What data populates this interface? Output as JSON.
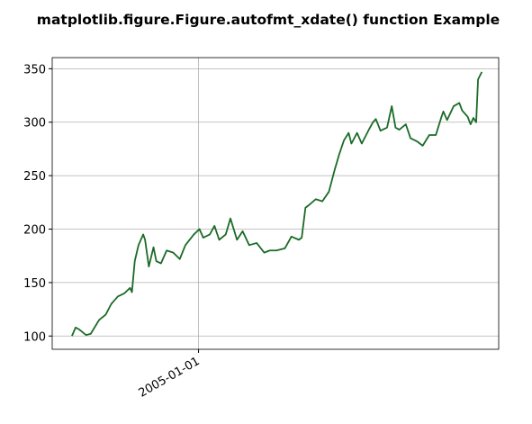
{
  "chart_data": {
    "type": "line",
    "title": "matplotlib.figure.Figure.autofmt_xdate() function Example",
    "x": [
      "2004-08-19",
      "2004-08-23",
      "2004-08-27",
      "2004-09-03",
      "2004-09-08",
      "2004-09-17",
      "2004-09-24",
      "2004-09-30",
      "2004-10-07",
      "2004-10-14",
      "2004-10-20",
      "2004-10-22",
      "2004-10-25",
      "2004-10-29",
      "2004-11-03",
      "2004-11-05",
      "2004-11-09",
      "2004-11-14",
      "2004-11-17",
      "2004-11-22",
      "2004-11-28",
      "2004-12-05",
      "2004-12-12",
      "2004-12-18",
      "2004-12-27",
      "2005-01-02",
      "2005-01-06",
      "2005-01-13",
      "2005-01-18",
      "2005-01-23",
      "2005-01-30",
      "2005-02-04",
      "2005-02-11",
      "2005-02-17",
      "2005-02-24",
      "2005-03-04",
      "2005-03-12",
      "2005-03-18",
      "2005-03-25",
      "2005-04-03",
      "2005-04-10",
      "2005-04-18",
      "2005-04-21",
      "2005-04-25",
      "2005-04-28",
      "2005-05-06",
      "2005-05-13",
      "2005-05-20",
      "2005-05-26",
      "2005-05-31",
      "2005-06-05",
      "2005-06-10",
      "2005-06-13",
      "2005-06-19",
      "2005-06-24",
      "2005-07-01",
      "2005-07-06",
      "2005-07-09",
      "2005-07-14",
      "2005-07-21",
      "2005-07-26",
      "2005-07-30",
      "2005-08-03",
      "2005-08-10",
      "2005-08-15",
      "2005-08-22",
      "2005-08-28",
      "2005-09-04",
      "2005-09-11",
      "2005-09-17",
      "2005-09-19",
      "2005-09-23",
      "2005-09-30",
      "2005-10-06",
      "2005-10-09",
      "2005-10-15",
      "2005-10-18",
      "2005-10-21",
      "2005-10-24",
      "2005-10-26",
      "2005-10-30"
    ],
    "values": [
      100,
      108,
      106,
      101,
      102,
      115,
      120,
      130,
      137,
      140,
      145,
      141,
      170,
      185,
      195,
      190,
      165,
      183,
      170,
      168,
      180,
      178,
      172,
      185,
      195,
      200,
      192,
      195,
      203,
      190,
      195,
      210,
      190,
      198,
      185,
      187,
      178,
      180,
      180,
      182,
      193,
      190,
      192,
      220,
      222,
      228,
      226,
      235,
      255,
      270,
      283,
      290,
      280,
      290,
      280,
      292,
      300,
      303,
      292,
      295,
      315,
      295,
      293,
      298,
      285,
      282,
      278,
      288,
      288,
      305,
      310,
      302,
      315,
      318,
      311,
      305,
      298,
      304,
      300,
      340,
      347
    ],
    "color": "#1a6b26",
    "xlim": [
      "2004-07-29",
      "2005-11-17"
    ],
    "xticks": [
      "2005-01-01"
    ],
    "ylim": [
      87.6,
      360.4
    ],
    "yticks": [
      100,
      150,
      200,
      250,
      300,
      350
    ],
    "grid": true
  }
}
